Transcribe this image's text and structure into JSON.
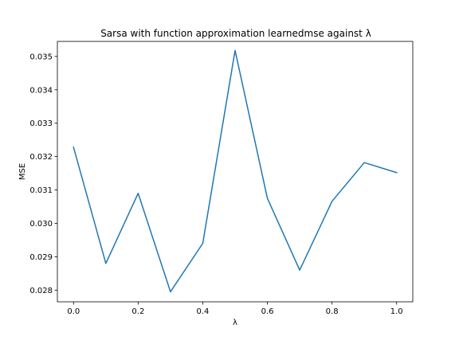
{
  "chart_data": {
    "type": "line",
    "title": "Sarsa with function approximation learnedmse against λ",
    "xlabel": "λ",
    "ylabel": "MSE",
    "xlim": [
      -0.05,
      1.05
    ],
    "ylim": [
      0.02765,
      0.03545
    ],
    "xticks": [
      0.0,
      0.2,
      0.4,
      0.6,
      0.8,
      1.0
    ],
    "xtick_labels": [
      "0.0",
      "0.2",
      "0.4",
      "0.6",
      "0.8",
      "1.0"
    ],
    "yticks": [
      0.028,
      0.029,
      0.03,
      0.031,
      0.032,
      0.033,
      0.034,
      0.035
    ],
    "ytick_labels": [
      "0.028",
      "0.029",
      "0.030",
      "0.031",
      "0.032",
      "0.033",
      "0.034",
      "0.035"
    ],
    "grid": false,
    "series": [
      {
        "color": "#1f77b4",
        "x": [
          0.0,
          0.1,
          0.2,
          0.3,
          0.4,
          0.5,
          0.6,
          0.7,
          0.8,
          0.9,
          1.0
        ],
        "y": [
          0.03228,
          0.0288,
          0.0309,
          0.02795,
          0.0294,
          0.03518,
          0.03075,
          0.0286,
          0.03066,
          0.03182,
          0.03152
        ]
      }
    ]
  }
}
